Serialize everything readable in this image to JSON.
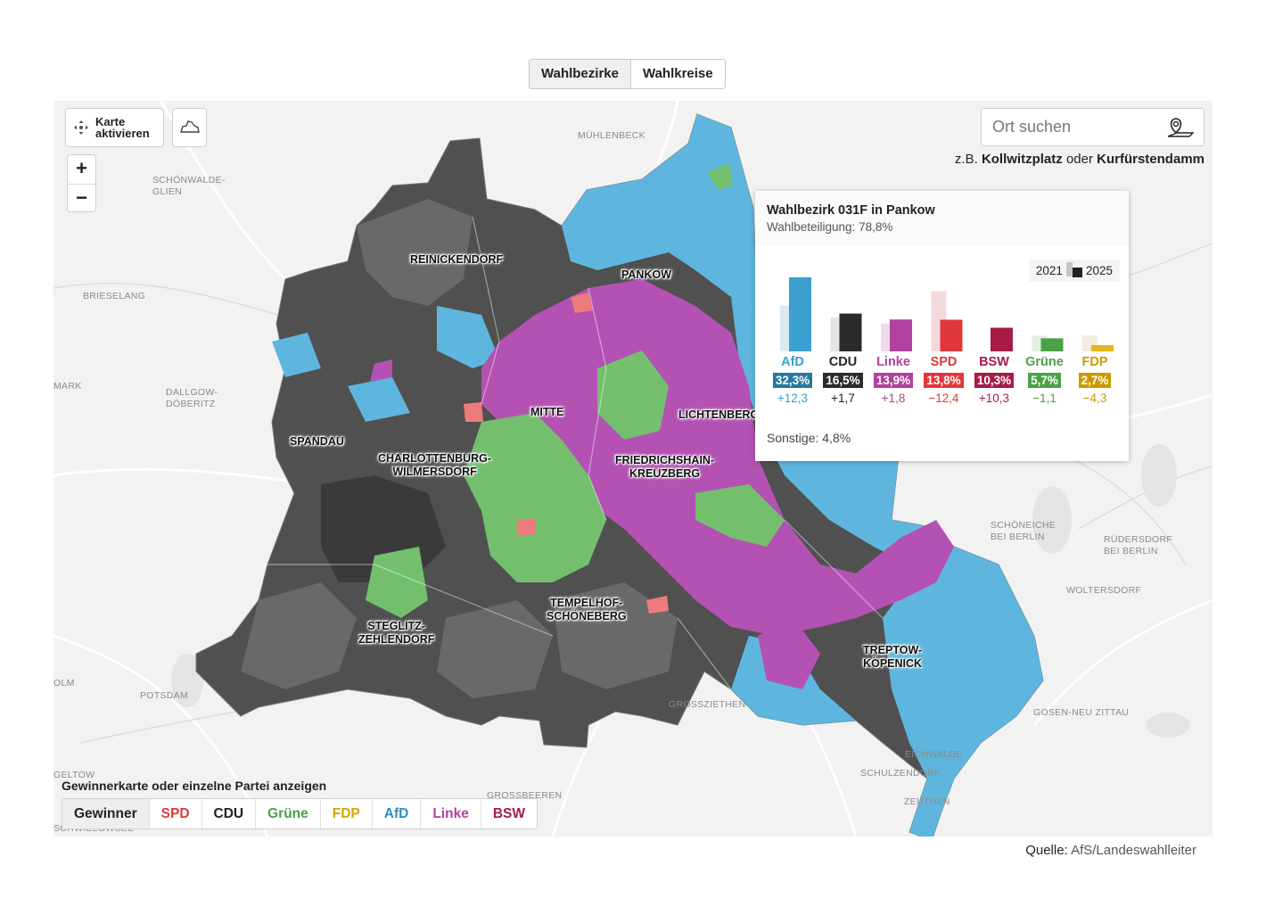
{
  "view_toggle": {
    "options": [
      "Wahlbezirke",
      "Wahlkreise"
    ],
    "active": "Wahlbezirke"
  },
  "map_controls": {
    "activate_label": "Karte\naktivieren",
    "zoom_in": "+",
    "zoom_out": "−",
    "icons": [
      "move-icon",
      "city-outline-icon"
    ]
  },
  "search": {
    "placeholder": "Ort suchen",
    "hint_prefix": "z.B.",
    "hint_example_1": "Kollwitzplatz",
    "hint_connector": "oder",
    "hint_example_2": "Kurfürstendamm",
    "icon": "location-search-icon"
  },
  "place_labels": [
    {
      "text": "MÜHLENBECK"
    },
    {
      "text": "SCHÖNWALDE-\nGLIEN"
    },
    {
      "text": "BRIESELANG"
    },
    {
      "text": "MARK"
    },
    {
      "text": "DALLGOW-\nDÖBERITZ"
    },
    {
      "text": "OLM"
    },
    {
      "text": "POTSDAM"
    },
    {
      "text": "GROSSZIETHEN"
    },
    {
      "text": "SCHÖNEICHE\nBEI BERLIN"
    },
    {
      "text": "RÜDERSDORF\nBEI BERLIN"
    },
    {
      "text": "WOLTERSDORF"
    },
    {
      "text": "GOSEN-NEU ZITTAU"
    },
    {
      "text": "EICHWALDE"
    },
    {
      "text": "SCHULZENDORF"
    },
    {
      "text": "ZEUTHEN"
    },
    {
      "text": "GELTOW"
    },
    {
      "text": "GROSSBEEREN"
    },
    {
      "text": "SCHWIELOWSEE"
    }
  ],
  "district_labels": [
    {
      "text": "REINICKENDORF"
    },
    {
      "text": "PANKOW"
    },
    {
      "text": "MITTE"
    },
    {
      "text": "LICHTENBERG"
    },
    {
      "text": "SPANDAU"
    },
    {
      "text": "CHARLOTTENBURG-\nWILMERSDORF"
    },
    {
      "text": "FRIEDRICHSHAIN-\nKREUZBERG"
    },
    {
      "text": "TEMPELHOF-\nSCHÖNEBERG"
    },
    {
      "text": "STEGLITZ-\nZEHLENDORF"
    },
    {
      "text": "TREPTOW-\nKÖPENICK"
    }
  ],
  "colors": {
    "AfD": "#3b9fd1",
    "CDU": "#2b2b2b",
    "Linke": "#b1419e",
    "SPD": "#e0373a",
    "BSW": "#a51c44",
    "Grüne": "#4aa246",
    "FDP": "#e6b41e",
    "map_afd": "#5eb6de",
    "map_cdu": "#5a5a5a",
    "map_linke": "#b452b4",
    "map_gruene": "#73bf6e",
    "map_spd": "#ee7b7b"
  },
  "tooltip": {
    "title": "Wahlbezirk 031F in Pankow",
    "turnout": "Wahlbeteiligung: 78,8%",
    "legend_2021": "2021",
    "legend_2025": "2025",
    "others": "Sonstige: 4,8%"
  },
  "chart_data": {
    "type": "bar",
    "categories": [
      "AfD",
      "CDU",
      "Linke",
      "SPD",
      "BSW",
      "Grüne",
      "FDP"
    ],
    "series": [
      {
        "name": "2021",
        "values": [
          20.0,
          14.8,
          12.1,
          26.2,
          0,
          6.8,
          7.0
        ]
      },
      {
        "name": "2025",
        "values": [
          32.3,
          16.5,
          13.9,
          13.8,
          10.3,
          5.7,
          2.7
        ]
      }
    ],
    "value_labels": [
      "32,3%",
      "16,5%",
      "13,9%",
      "13,8%",
      "10,3%",
      "5,7%",
      "2,7%"
    ],
    "change_labels": [
      "+12,3",
      "+1,7",
      "+1,8",
      "−12,4",
      "+10,3",
      "−1,1",
      "−4,3"
    ],
    "ylim": [
      0,
      35
    ]
  },
  "party_filter": {
    "label": "Gewinnerkarte oder einzelne Partei anzeigen",
    "options": [
      {
        "label": "Gewinner",
        "color": "#222222"
      },
      {
        "label": "SPD",
        "color": "#e0373a"
      },
      {
        "label": "CDU",
        "color": "#222222"
      },
      {
        "label": "Grüne",
        "color": "#4aa246"
      },
      {
        "label": "FDP",
        "color": "#d9a400"
      },
      {
        "label": "AfD",
        "color": "#2b8fbf"
      },
      {
        "label": "Linke",
        "color": "#b1419e"
      },
      {
        "label": "BSW",
        "color": "#a51c44"
      }
    ],
    "active": "Gewinner"
  },
  "source": {
    "label": "Quelle:",
    "value": "AfS/Landeswahlleiter"
  }
}
